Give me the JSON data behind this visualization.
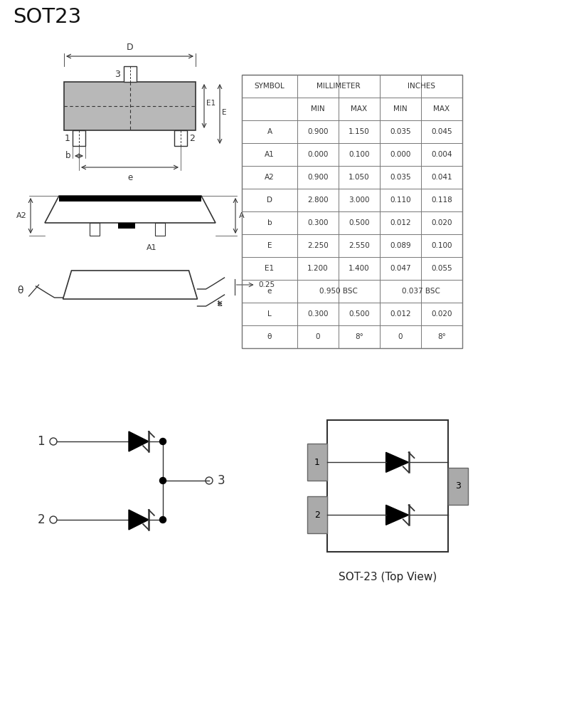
{
  "title": "SOT23",
  "bg_color": "#ffffff",
  "line_color": "#333333",
  "gray_fill": "#b8b8b8",
  "table_data": [
    [
      "A",
      "0.900",
      "1.150",
      "0.035",
      "0.045"
    ],
    [
      "A1",
      "0.000",
      "0.100",
      "0.000",
      "0.004"
    ],
    [
      "A2",
      "0.900",
      "1.050",
      "0.035",
      "0.041"
    ],
    [
      "D",
      "2.800",
      "3.000",
      "0.110",
      "0.118"
    ],
    [
      "b",
      "0.300",
      "0.500",
      "0.012",
      "0.020"
    ],
    [
      "E",
      "2.250",
      "2.550",
      "0.089",
      "0.100"
    ],
    [
      "E1",
      "1.200",
      "1.400",
      "0.047",
      "0.055"
    ],
    [
      "e",
      "0.950 BSC",
      "",
      "0.037 BSC",
      ""
    ],
    [
      "L",
      "0.300",
      "0.500",
      "0.012",
      "0.020"
    ],
    [
      "θ",
      "0",
      "8°",
      "0",
      "8°"
    ]
  ],
  "sot23_label": "SOT-23 (Top View)"
}
